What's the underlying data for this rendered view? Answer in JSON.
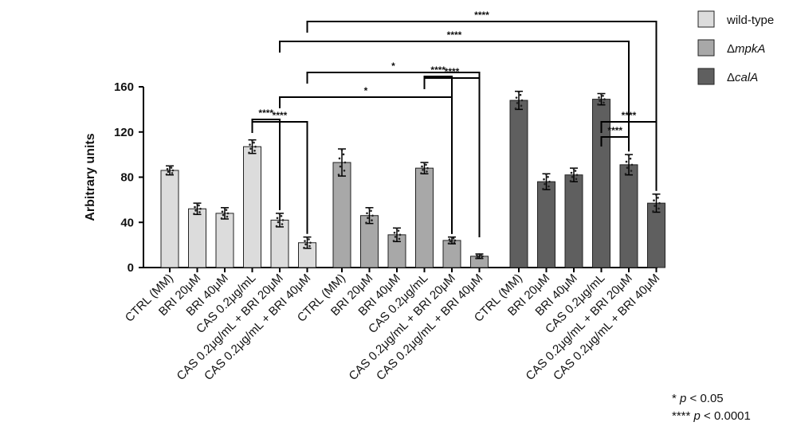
{
  "chart_data": {
    "type": "bar",
    "ylabel": "Arbitrary units",
    "ylim": [
      0,
      160
    ],
    "yticks": [
      0,
      40,
      80,
      120,
      160
    ],
    "legend_position": "top-right",
    "series": [
      {
        "name": "wild-type",
        "name_prefix": "",
        "name_italic": "wild-type",
        "color": "#dcdcdc",
        "categories": [
          "CTRL (MM)",
          "BRI 20μM",
          "BRI 40μM",
          "CAS 0.2μg/mL",
          "CAS 0.2μg/mL + BRI 20μM",
          "CAS 0.2μg/mL + BRI 40μM"
        ],
        "values": [
          86,
          52,
          48,
          107,
          42,
          22
        ],
        "errors": [
          4,
          5,
          5,
          6,
          6,
          5
        ]
      },
      {
        "name": "ΔmpkA",
        "name_prefix": "Δ",
        "name_italic": "mpkA",
        "color": "#a8a8a8",
        "categories": [
          "CTRL (MM)",
          "BRI 20μM",
          "BRI 40μM",
          "CAS 0.2μg/mL",
          "CAS 0.2μg/mL + BRI 20μM",
          "CAS 0.2μg/mL + BRI 40μM"
        ],
        "values": [
          93,
          46,
          29,
          88,
          24,
          10
        ],
        "errors": [
          12,
          7,
          6,
          5,
          3,
          2
        ]
      },
      {
        "name": "ΔcalA",
        "name_prefix": "Δ",
        "name_italic": "calA",
        "color": "#5f5f5f",
        "categories": [
          "CTRL (MM)",
          "BRI 20μM",
          "BRI 40μM",
          "CAS 0.2μg/mL",
          "CAS 0.2μg/mL + BRI 20μM",
          "CAS 0.2μg/mL + BRI 40μM"
        ],
        "values": [
          148,
          76,
          82,
          149,
          91,
          57
        ],
        "errors": [
          8,
          7,
          6,
          5,
          9,
          8
        ]
      }
    ],
    "significance": [
      {
        "from": [
          0,
          3
        ],
        "to": [
          0,
          4
        ],
        "label": "****"
      },
      {
        "from": [
          0,
          3
        ],
        "to": [
          0,
          5
        ],
        "label": "****"
      },
      {
        "from": [
          1,
          3
        ],
        "to": [
          1,
          4
        ],
        "label": "****"
      },
      {
        "from": [
          1,
          3
        ],
        "to": [
          1,
          5
        ],
        "label": "****"
      },
      {
        "from": [
          2,
          3
        ],
        "to": [
          2,
          4
        ],
        "label": "****"
      },
      {
        "from": [
          2,
          3
        ],
        "to": [
          2,
          5
        ],
        "label": "****"
      },
      {
        "from": [
          0,
          4
        ],
        "to": [
          1,
          4
        ],
        "label": "*"
      },
      {
        "from": [
          0,
          5
        ],
        "to": [
          1,
          5
        ],
        "label": "*"
      },
      {
        "from": [
          0,
          4
        ],
        "to": [
          2,
          4
        ],
        "label": "****"
      },
      {
        "from": [
          0,
          5
        ],
        "to": [
          2,
          5
        ],
        "label": "****"
      }
    ],
    "footnotes": [
      {
        "stars": "*",
        "p_italic": "p",
        "rest": " < 0.05"
      },
      {
        "stars": "****",
        "p_italic": "p",
        "rest": " < 0.0001"
      }
    ]
  }
}
